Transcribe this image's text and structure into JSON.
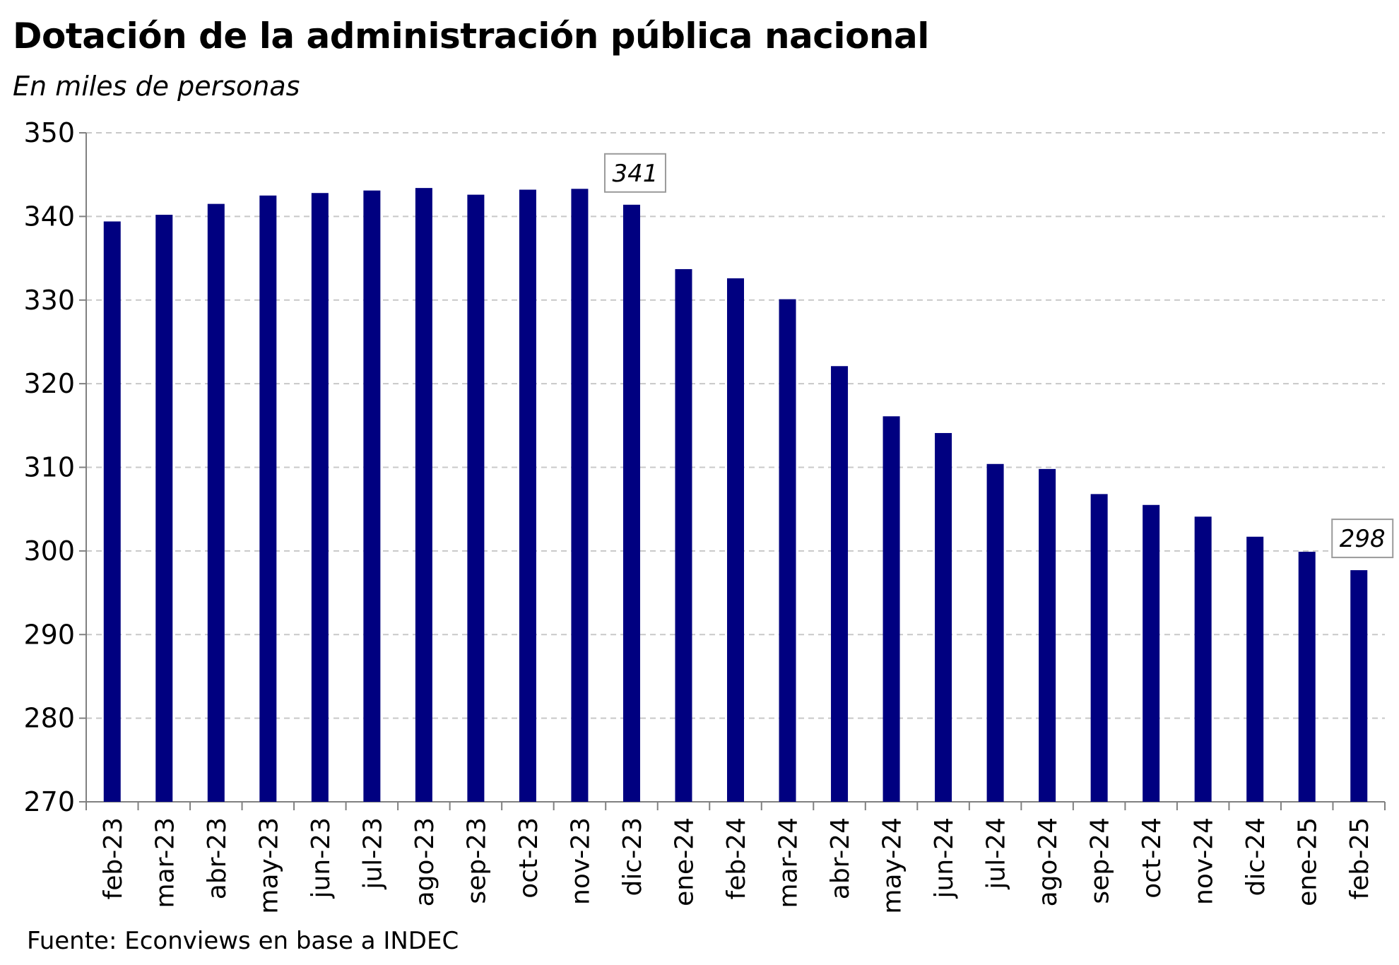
{
  "chart_data": {
    "type": "bar",
    "title": "Dotación de la administración pública nacional",
    "subtitle": "En miles de personas",
    "source": "Fuente: Econviews en base a INDEC",
    "xlabel": "",
    "ylabel": "",
    "ylim": [
      270,
      350
    ],
    "yticks": [
      270,
      280,
      290,
      300,
      310,
      320,
      330,
      340,
      350
    ],
    "grid": true,
    "bar_color": "#000080",
    "categories": [
      "feb-23",
      "mar-23",
      "abr-23",
      "may-23",
      "jun-23",
      "jul-23",
      "ago-23",
      "sep-23",
      "oct-23",
      "nov-23",
      "dic-23",
      "ene-24",
      "feb-24",
      "mar-24",
      "abr-24",
      "may-24",
      "jun-24",
      "jul-24",
      "ago-24",
      "sep-24",
      "oct-24",
      "nov-24",
      "dic-24",
      "ene-25",
      "feb-25"
    ],
    "values": [
      339.4,
      340.2,
      341.5,
      342.5,
      342.8,
      343.1,
      343.4,
      342.6,
      343.2,
      343.3,
      341.4,
      333.7,
      332.6,
      330.1,
      322.1,
      316.1,
      314.1,
      310.4,
      309.8,
      306.8,
      305.5,
      304.1,
      301.7,
      299.9,
      297.7
    ],
    "annotations": [
      {
        "category": "dic-23",
        "label": "341"
      },
      {
        "category": "feb-25",
        "label": "298"
      }
    ]
  }
}
